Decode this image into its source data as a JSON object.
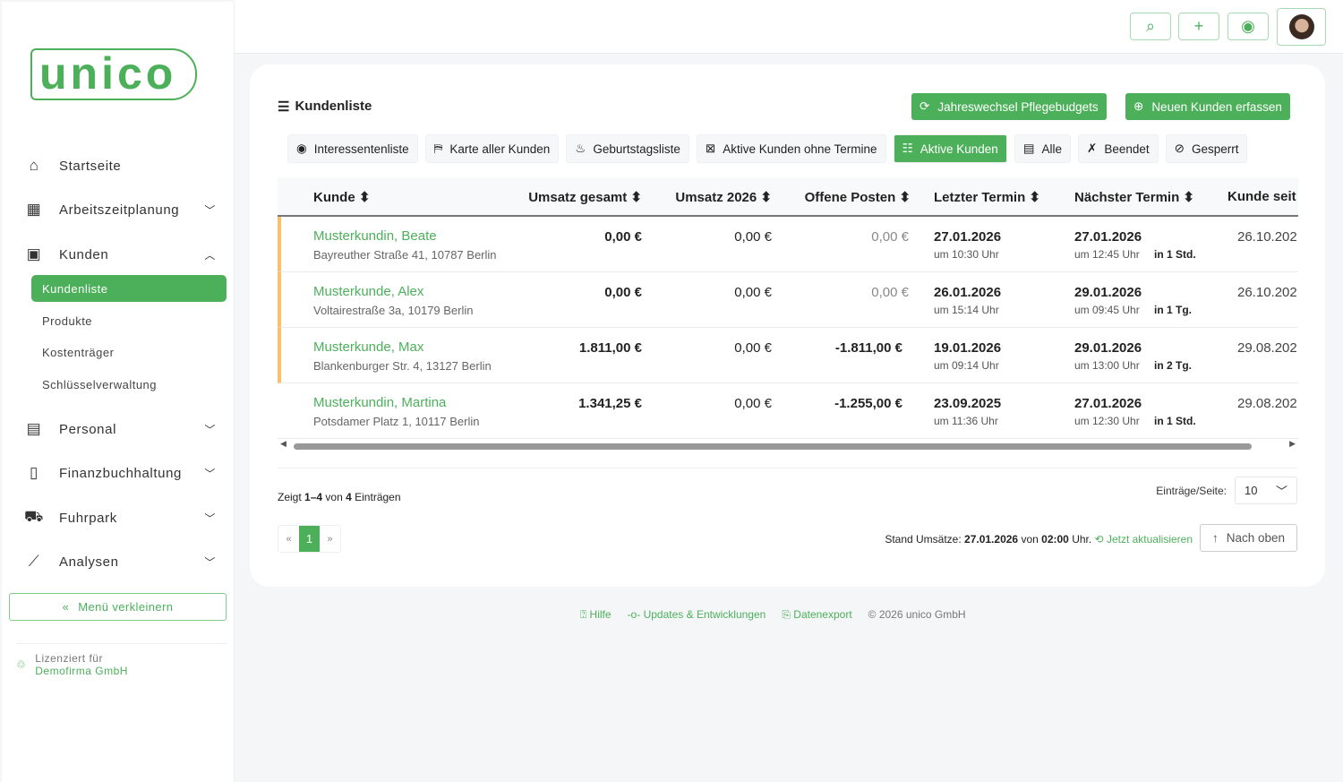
{
  "brand": {
    "logo_text": "unico",
    "accent": "#4cb05a",
    "row_marker": "#f9bf6a"
  },
  "sidebar": {
    "items": [
      {
        "label": "Startseite",
        "icon": "home-icon"
      },
      {
        "label": "Arbeitszeitplanung",
        "icon": "calendar-icon",
        "expandable": true
      },
      {
        "label": "Kunden",
        "icon": "customers-icon",
        "expanded": true
      },
      {
        "label": "Personal",
        "icon": "staff-icon",
        "expandable": true
      },
      {
        "label": "Finanzbuchhaltung",
        "icon": "document-icon",
        "expandable": true
      },
      {
        "label": "Fuhrpark",
        "icon": "car-icon",
        "expandable": true
      },
      {
        "label": "Analysen",
        "icon": "chart-icon",
        "expandable": true
      }
    ],
    "sub_items": [
      "Kundenliste",
      "Produkte",
      "Kostenträger",
      "Schlüsselverwaltung"
    ],
    "active_sub": "Kundenliste",
    "shrink_label": "Menü verkleinern",
    "license_label": "Lizenziert für",
    "license_company": "Demofirma GmbH"
  },
  "header": {
    "buttons": [
      "search-icon",
      "plus-icon",
      "user-circle-icon"
    ]
  },
  "main": {
    "title": "Kundenliste",
    "actions": {
      "year_change": "Jahreswechsel Pflegebudgets",
      "new_customer": "Neuen Kunden erfassen"
    },
    "filters": [
      {
        "label": "Interessentenliste",
        "icon": "eye-icon"
      },
      {
        "label": "Karte aller Kunden",
        "icon": "map-icon"
      },
      {
        "label": "Geburtstagsliste",
        "icon": "cake-icon"
      },
      {
        "label": "Aktive Kunden ohne Termine",
        "icon": "calendar-x-icon"
      },
      {
        "label": "Aktive Kunden",
        "icon": "users-icon",
        "active": true
      },
      {
        "label": "Alle",
        "icon": "list-icon"
      },
      {
        "label": "Beendet",
        "icon": "ribbon-x-icon"
      },
      {
        "label": "Gesperrt",
        "icon": "ban-icon"
      }
    ],
    "columns": [
      "Kunde",
      "Umsatz gesamt",
      "Umsatz 2026",
      "Offene Posten",
      "Letzter Termin",
      "Nächster Termin",
      "Kunde seit"
    ],
    "rows": [
      {
        "name": "Musterkundin, Beate",
        "address": "Bayreuther Straße 41, 10787 Berlin",
        "total": "0,00 €",
        "year": "0,00 €",
        "open": "0,00 €",
        "last_date": "27.01.2026",
        "last_time": "um 10:30 Uhr",
        "next_date": "27.01.2026",
        "next_time": "um 12:45 Uhr",
        "next_rel": "in 1 Std.",
        "since": "26.10.202",
        "marked": true
      },
      {
        "name": "Musterkunde, Alex",
        "address": "Voltairestraße 3a, 10179 Berlin",
        "total": "0,00 €",
        "year": "0,00 €",
        "open": "0,00 €",
        "last_date": "26.01.2026",
        "last_time": "um 15:14 Uhr",
        "next_date": "29.01.2026",
        "next_time": "um 09:45 Uhr",
        "next_rel": "in 1 Tg.",
        "since": "26.10.202",
        "marked": true
      },
      {
        "name": "Musterkunde, Max",
        "address": "Blankenburger Str. 4, 13127 Berlin",
        "total": "1.811,00 €",
        "year": "0,00 €",
        "open": "-1.811,00 €",
        "last_date": "19.01.2026",
        "last_time": "um 09:14 Uhr",
        "next_date": "29.01.2026",
        "next_time": "um 13:00 Uhr",
        "next_rel": "in 2 Tg.",
        "since": "29.08.202",
        "marked": true
      },
      {
        "name": "Musterkundin, Martina",
        "address": "Potsdamer Platz 1, 10117 Berlin",
        "total": "1.341,25 €",
        "year": "0,00 €",
        "open": "-1.255,00 €",
        "last_date": "23.09.2025",
        "last_time": "um 11:36 Uhr",
        "next_date": "27.01.2026",
        "next_time": "um 12:30 Uhr",
        "next_rel": "in 1 Std.",
        "since": "29.08.202",
        "marked": false
      }
    ],
    "summary": {
      "prefix": "Zeigt",
      "range": "1–4",
      "of": "von",
      "total": "4",
      "suffix": "Einträgen"
    },
    "pagination": {
      "prev": "«",
      "current": "1",
      "next": "»"
    },
    "per_page": {
      "label": "Einträge/Seite:",
      "value": "10"
    },
    "stand": {
      "label": "Stand Umsätze:",
      "date": "27.01.2026",
      "von": "von",
      "time": "02:00",
      "uhr": "Uhr.",
      "refresh": "Jetzt aktualisieren"
    },
    "to_top": "Nach oben"
  },
  "footer": {
    "help": "Hilfe",
    "updates": "Updates & Entwicklungen",
    "export": "Datenexport",
    "copyright": "© 2026 unico GmbH"
  }
}
